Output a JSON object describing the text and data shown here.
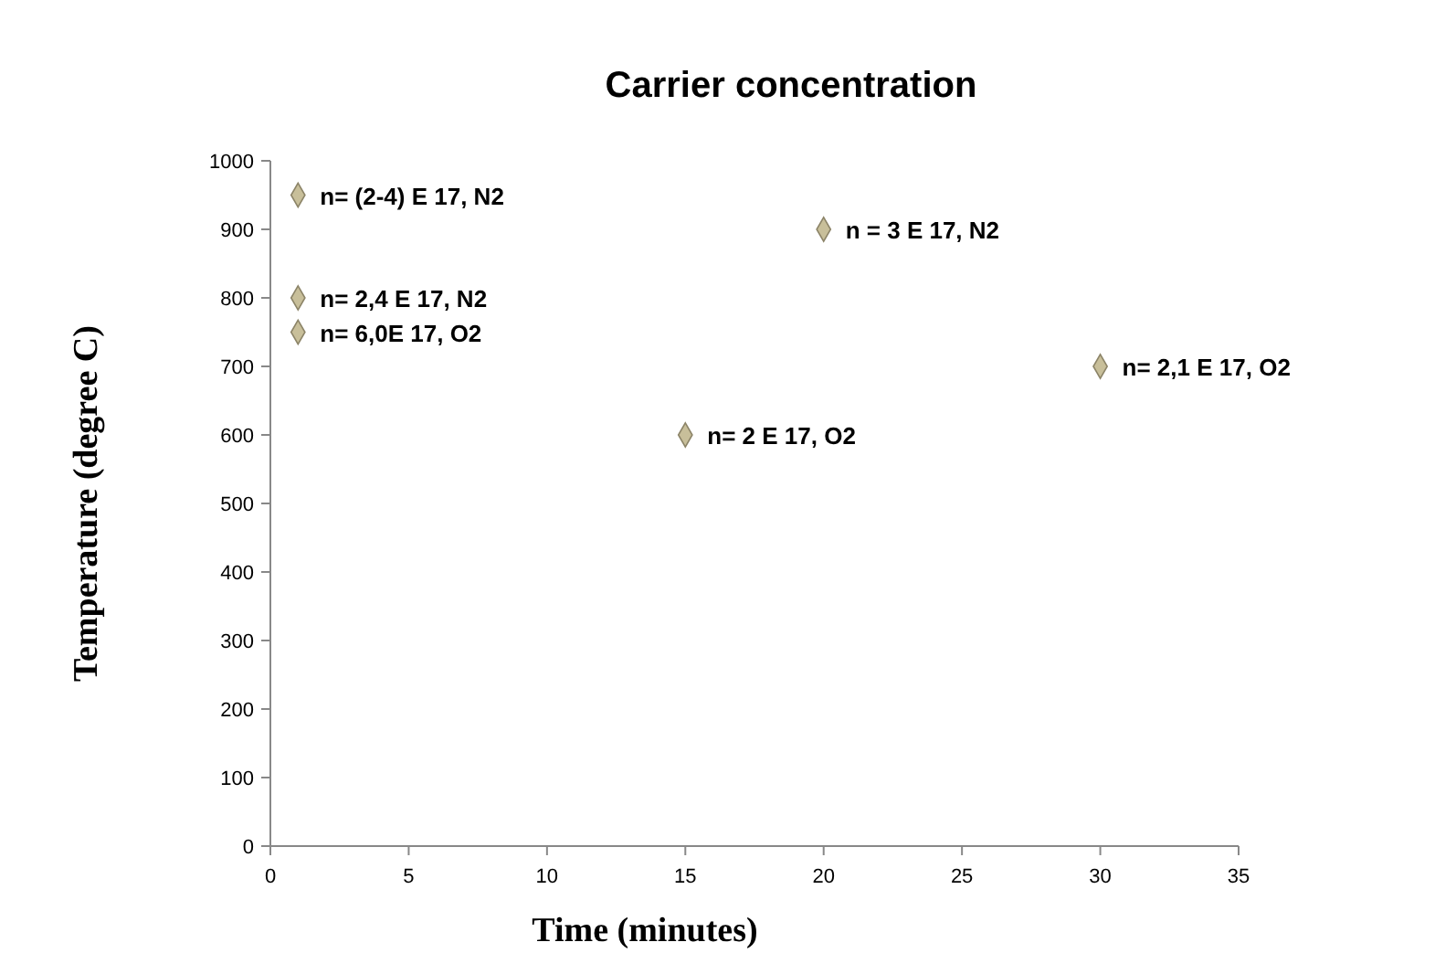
{
  "chart_data": {
    "type": "scatter",
    "title": "Carrier concentration",
    "xlabel": "Time (minutes)",
    "ylabel": "Temperature (degree C)",
    "x": [
      1,
      1,
      1,
      15,
      20,
      30
    ],
    "values": [
      950,
      800,
      750,
      600,
      900,
      700
    ],
    "color": "#c8bf9a",
    "marker": "diamond",
    "grid": false,
    "xlim": [
      0,
      35
    ],
    "xticks": [
      0,
      5,
      10,
      15,
      20,
      25,
      30,
      35
    ],
    "ylim": [
      0,
      1000
    ],
    "yticks": [
      0,
      100,
      200,
      300,
      400,
      500,
      600,
      700,
      800,
      900,
      1000
    ],
    "annotations": [
      {
        "text": "n= (2-4) E 17, N2",
        "x": 1,
        "y": 950
      },
      {
        "text": "n= 2,4 E 17, N2",
        "x": 1,
        "y": 800
      },
      {
        "text": "n= 6,0E 17, O2",
        "x": 1,
        "y": 750
      },
      {
        "text": "n= 2 E 17, O2",
        "x": 15,
        "y": 600
      },
      {
        "text": "n = 3 E 17, N2",
        "x": 20,
        "y": 900
      },
      {
        "text": "n= 2,1 E 17, O2",
        "x": 30,
        "y": 700
      }
    ]
  }
}
